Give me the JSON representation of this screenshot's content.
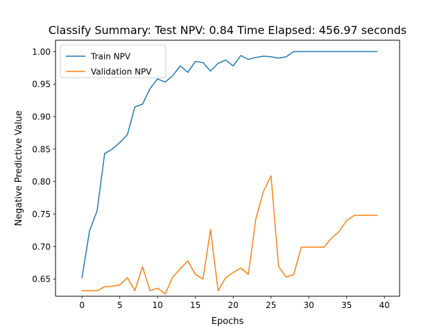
{
  "chart_data": {
    "type": "line",
    "title": "Classify Summary: Test NPV: 0.84 Time Elapsed: 456.97 seconds",
    "xlabel": "Epochs",
    "ylabel": "Negative Predictive Value",
    "xlim": [
      -3.5,
      42
    ],
    "ylim": [
      0.6235,
      1.0175
    ],
    "xticks": [
      0,
      5,
      10,
      15,
      20,
      25,
      30,
      35,
      40
    ],
    "xtick_labels": [
      "0",
      "5",
      "10",
      "15",
      "20",
      "25",
      "30",
      "35",
      "40"
    ],
    "yticks": [
      0.65,
      0.7,
      0.75,
      0.8,
      0.85,
      0.9,
      0.95,
      1.0
    ],
    "ytick_labels": [
      "0.65",
      "0.70",
      "0.75",
      "0.80",
      "0.85",
      "0.90",
      "0.95",
      "1.00"
    ],
    "grid": false,
    "legend_position": "top-left",
    "x": [
      0,
      1,
      2,
      3,
      4,
      5,
      6,
      7,
      8,
      9,
      10,
      11,
      12,
      13,
      14,
      15,
      16,
      17,
      18,
      19,
      20,
      21,
      22,
      23,
      24,
      25,
      26,
      27,
      28,
      29,
      30,
      31,
      32,
      33,
      34,
      35,
      36,
      37,
      38,
      39
    ],
    "series": [
      {
        "name": "Train NPV",
        "color": "#1f77b4",
        "values": [
          0.652,
          0.724,
          0.755,
          0.843,
          0.85,
          0.86,
          0.872,
          0.915,
          0.919,
          0.943,
          0.958,
          0.953,
          0.963,
          0.978,
          0.968,
          0.985,
          0.983,
          0.97,
          0.982,
          0.987,
          0.978,
          0.994,
          0.988,
          0.991,
          0.993,
          0.992,
          0.99,
          0.992,
          1.0,
          1.0,
          1.0,
          1.0,
          1.0,
          1.0,
          1.0,
          1.0,
          1.0,
          1.0,
          1.0,
          1.0
        ]
      },
      {
        "name": "Validation NPV",
        "color": "#ff7f0e",
        "values": [
          0.632,
          0.632,
          0.632,
          0.638,
          0.639,
          0.641,
          0.652,
          0.632,
          0.669,
          0.632,
          0.636,
          0.627,
          0.653,
          0.666,
          0.678,
          0.657,
          0.65,
          0.726,
          0.632,
          0.652,
          0.66,
          0.667,
          0.657,
          0.743,
          0.785,
          0.809,
          0.669,
          0.653,
          0.657,
          0.699,
          0.699,
          0.699,
          0.699,
          0.713,
          0.723,
          0.74,
          0.748,
          0.748,
          0.748,
          0.748
        ]
      }
    ]
  }
}
